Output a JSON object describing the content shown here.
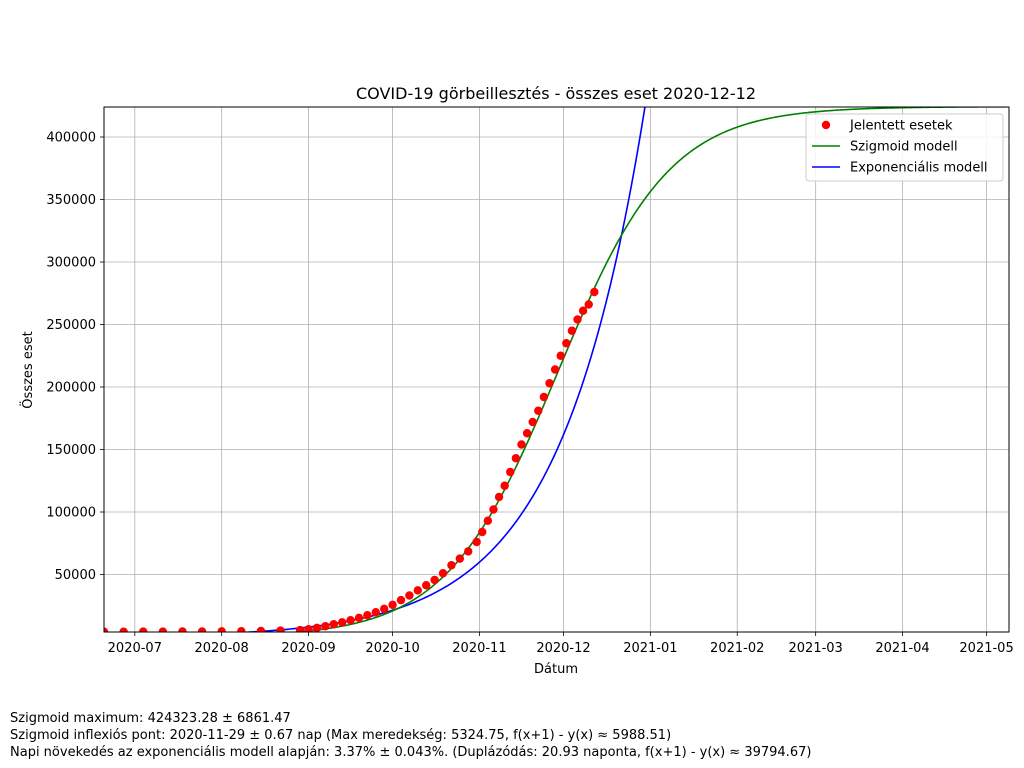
{
  "chart_data": {
    "type": "line",
    "title": "COVID-19 görbeillesztés - összes eset 2020-12-12",
    "xlabel": "Dátum",
    "ylabel": "Összes eset",
    "x_axis_kind": "date",
    "xlim": [
      "2020-06-20",
      "2021-05-09"
    ],
    "ylim": [
      4000,
      424000
    ],
    "x_ticks": [
      "2020-07",
      "2020-08",
      "2020-09",
      "2020-10",
      "2020-11",
      "2020-12",
      "2021-01",
      "2021-02",
      "2021-03",
      "2021-04",
      "2021-05"
    ],
    "y_ticks": [
      50000,
      100000,
      150000,
      200000,
      250000,
      300000,
      350000,
      400000
    ],
    "grid": true,
    "legend_position": "top-right",
    "series": [
      {
        "name": "Jelentett esetek",
        "kind": "scatter",
        "color": "#ff0000",
        "x": [
          "2020-06-20",
          "2020-06-27",
          "2020-07-04",
          "2020-07-11",
          "2020-07-18",
          "2020-07-25",
          "2020-08-01",
          "2020-08-08",
          "2020-08-15",
          "2020-08-22",
          "2020-08-29",
          "2020-09-01",
          "2020-09-04",
          "2020-09-07",
          "2020-09-10",
          "2020-09-13",
          "2020-09-16",
          "2020-09-19",
          "2020-09-22",
          "2020-09-25",
          "2020-09-28",
          "2020-10-01",
          "2020-10-04",
          "2020-10-07",
          "2020-10-10",
          "2020-10-13",
          "2020-10-16",
          "2020-10-19",
          "2020-10-22",
          "2020-10-25",
          "2020-10-28",
          "2020-10-31",
          "2020-11-02",
          "2020-11-04",
          "2020-11-06",
          "2020-11-08",
          "2020-11-10",
          "2020-11-12",
          "2020-11-14",
          "2020-11-16",
          "2020-11-18",
          "2020-11-20",
          "2020-11-22",
          "2020-11-24",
          "2020-11-26",
          "2020-11-28",
          "2020-11-30",
          "2020-12-02",
          "2020-12-04",
          "2020-12-06",
          "2020-12-08",
          "2020-12-10",
          "2020-12-12"
        ],
        "y": [
          4200,
          4250,
          4300,
          4350,
          4400,
          4450,
          4550,
          4650,
          4800,
          5100,
          5500,
          6200,
          7300,
          8600,
          10200,
          11700,
          13400,
          15300,
          17400,
          19800,
          22500,
          25700,
          29500,
          33200,
          37300,
          41400,
          45600,
          51000,
          57400,
          62700,
          68500,
          76000,
          84000,
          93000,
          102000,
          112000,
          121000,
          132000,
          143000,
          154000,
          163000,
          172000,
          181000,
          192000,
          203000,
          214000,
          225000,
          235000,
          245000,
          254000,
          261000,
          266000,
          276000
        ]
      },
      {
        "name": "Szigmoid modell",
        "kind": "line",
        "color": "#008000",
        "model": "sigmoid",
        "maximum": 424323.28,
        "inflection_date": "2020-11-29",
        "max_slope": 5324.75
      },
      {
        "name": "Exponenciális modell",
        "kind": "line",
        "color": "#0000ff",
        "model": "exponential",
        "daily_growth_percent": 3.37,
        "reference_date": "2020-12-12",
        "reference_value": 233000
      }
    ]
  },
  "stats": {
    "line1": "Szigmoid maximum: 424323.28 ± 6861.47",
    "line2": "Szigmoid inflexiós pont: 2020-11-29 ± 0.67 nap (Max meredekség: 5324.75, f(x+1) - y(x) ≈ 5988.51)",
    "line3": "Napi növekedés az exponenciális modell alapján: 3.37% ± 0.043%. (Duplázódás: 20.93 naponta, f(x+1) - y(x) ≈ 39794.67)"
  }
}
